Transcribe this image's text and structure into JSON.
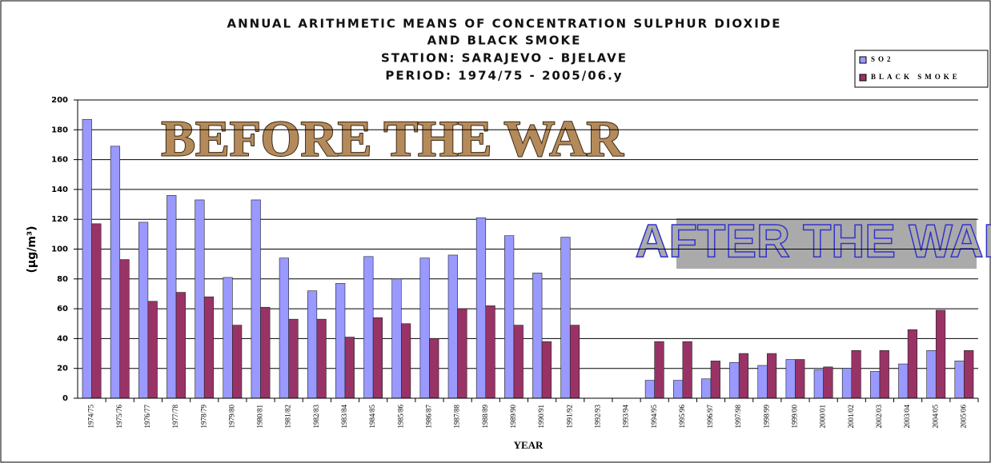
{
  "chart_data": {
    "type": "bar",
    "title": [
      "ANNUAL ARITHMETIC MEANS OF CONCENTRATION SULPHUR DIOXIDE",
      "AND BLACK SMOKE",
      "STATION: SARAJEVO - BJELAVE",
      "PERIOD: 1974/75 - 2005/06.y"
    ],
    "annotations": [
      "BEFORE THE WAR",
      "AFTER THE WAR"
    ],
    "x_label": "YEAR",
    "y_label": "(µg/m³)",
    "categories": [
      "1974/75",
      "1975/76",
      "1976/77",
      "1977/78",
      "1978/79",
      "1979/80",
      "1980/81",
      "1981/82",
      "1982/83",
      "1983/84",
      "1984/85",
      "1985/86",
      "1986/87",
      "1987/88",
      "1988/89",
      "1989/90",
      "1990/91",
      "1991/92",
      "1992/93",
      "1993/94",
      "1994/95",
      "1995/96",
      "1996/97",
      "1997/98",
      "1998/99",
      "1999/00",
      "2000/01",
      "2001/02",
      "2002/03",
      "2003/04",
      "2004/05",
      "2005/06"
    ],
    "series": [
      {
        "name": "SO2",
        "color": "#9999ff",
        "values": [
          187,
          169,
          118,
          136,
          133,
          81,
          133,
          94,
          72,
          77,
          95,
          80,
          94,
          96,
          121,
          109,
          84,
          108,
          null,
          null,
          12,
          12,
          13,
          24,
          22,
          26,
          19,
          20,
          18,
          23,
          32,
          25
        ]
      },
      {
        "name": "BLACK SMOKE",
        "color": "#993366",
        "values": [
          117,
          93,
          65,
          71,
          68,
          49,
          61,
          53,
          53,
          41,
          54,
          50,
          40,
          60,
          62,
          49,
          38,
          49,
          null,
          null,
          38,
          38,
          25,
          30,
          30,
          26,
          21,
          32,
          32,
          46,
          59,
          32
        ]
      }
    ],
    "ylim": [
      0,
      200
    ],
    "yticks": [
      0,
      20,
      40,
      60,
      80,
      100,
      120,
      140,
      160,
      180,
      200
    ],
    "grid": true,
    "legend": "top-right"
  }
}
